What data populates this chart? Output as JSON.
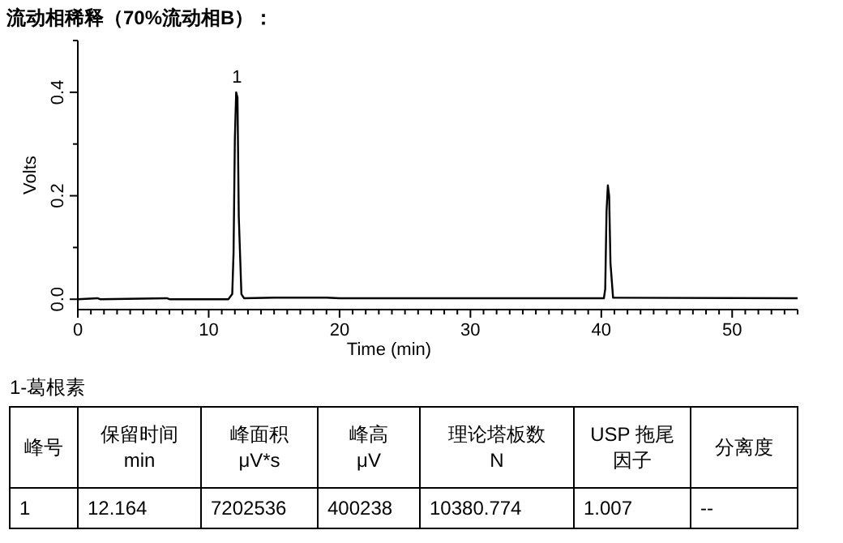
{
  "chart_data": {
    "type": "line",
    "title": "流动相稀释（70%流动相B）：",
    "xlabel": "Time (min)",
    "ylabel": "Volts",
    "x": [
      0,
      1.5,
      1.7,
      6.8,
      7,
      11.5,
      11.8,
      11.9,
      12.0,
      12.1,
      12.2,
      12.3,
      12.5,
      12.7,
      15,
      19,
      20,
      40.2,
      40.3,
      40.4,
      40.5,
      40.6,
      40.7,
      40.9,
      55
    ],
    "series": [
      {
        "color": "#000000",
        "values": [
          0,
          0.002,
          0,
          0.002,
          0,
          0,
          0.01,
          0.09,
          0.31,
          0.4,
          0.39,
          0.16,
          0.01,
          0.002,
          0.003,
          0.003,
          0.002,
          0.002,
          0.02,
          0.17,
          0.22,
          0.2,
          0.07,
          0.003,
          0.002
        ]
      }
    ],
    "xlim": [
      0,
      55
    ],
    "ylim": [
      -0.02,
      0.5
    ],
    "xticks": [
      0,
      {
        "value": 1,
        "label": null
      },
      {
        "value": 2,
        "label": null
      },
      {
        "value": 3,
        "label": null
      },
      {
        "value": 4,
        "label": null
      },
      {
        "value": 5,
        "label": null
      },
      {
        "value": 6,
        "label": null
      },
      {
        "value": 7,
        "label": null
      },
      {
        "value": 8,
        "label": null
      },
      {
        "value": 9,
        "label": null
      },
      10,
      {
        "value": 11,
        "label": null
      },
      {
        "value": 12,
        "label": null
      },
      {
        "value": 13,
        "label": null
      },
      {
        "value": 14,
        "label": null
      },
      {
        "value": 15,
        "label": null
      },
      {
        "value": 16,
        "label": null
      },
      {
        "value": 17,
        "label": null
      },
      {
        "value": 18,
        "label": null
      },
      {
        "value": 19,
        "label": null
      },
      20,
      {
        "value": 21,
        "label": null
      },
      {
        "value": 22,
        "label": null
      },
      {
        "value": 23,
        "label": null
      },
      {
        "value": 24,
        "label": null
      },
      {
        "value": 25,
        "label": null
      },
      {
        "value": 26,
        "label": null
      },
      {
        "value": 27,
        "label": null
      },
      {
        "value": 28,
        "label": null
      },
      {
        "value": 29,
        "label": null
      },
      30,
      {
        "value": 31,
        "label": null
      },
      {
        "value": 32,
        "label": null
      },
      {
        "value": 33,
        "label": null
      },
      {
        "value": 34,
        "label": null
      },
      {
        "value": 35,
        "label": null
      },
      {
        "value": 36,
        "label": null
      },
      {
        "value": 37,
        "label": null
      },
      {
        "value": 38,
        "label": null
      },
      {
        "value": 39,
        "label": null
      },
      40,
      {
        "value": 41,
        "label": null
      },
      {
        "value": 42,
        "label": null
      },
      {
        "value": 43,
        "label": null
      },
      {
        "value": 44,
        "label": null
      },
      {
        "value": 45,
        "label": null
      },
      {
        "value": 46,
        "label": null
      },
      {
        "value": 47,
        "label": null
      },
      {
        "value": 48,
        "label": null
      },
      {
        "value": 49,
        "label": null
      },
      50,
      {
        "value": 51,
        "label": null
      },
      {
        "value": 52,
        "label": null
      },
      {
        "value": 53,
        "label": null
      },
      {
        "value": 54,
        "label": null
      },
      {
        "value": 55,
        "label": null
      }
    ],
    "yticks": [
      {
        "value": 0,
        "label": "0.0"
      },
      {
        "value": 0.1,
        "label": null
      },
      {
        "value": 0.2,
        "label": "0.2"
      },
      {
        "value": 0.3,
        "label": null
      },
      {
        "value": 0.4,
        "label": "0.4"
      },
      {
        "value": 0.5,
        "label": null
      }
    ],
    "grid": false,
    "marker": "none",
    "line_style": "solid",
    "annotations": [
      {
        "text": "1",
        "x": 12.164,
        "y": 0.4
      },
      "1-葛根素",
      [
        "峰号"
      ],
      [
        "保留时间",
        "min"
      ],
      [
        "峰面积",
        "μV*s"
      ],
      [
        "峰高",
        "μV"
      ],
      [
        "理论塔板数",
        "N"
      ],
      [
        "USP 拖尾",
        "因子"
      ],
      [
        "分离度"
      ],
      "1",
      "12.164",
      "7202536",
      "400238",
      "10380.774",
      "1.007",
      "--"
    ]
  }
}
